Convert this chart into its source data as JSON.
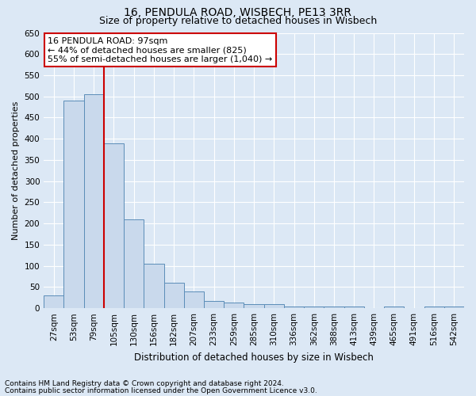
{
  "title1": "16, PENDULA ROAD, WISBECH, PE13 3RR",
  "title2": "Size of property relative to detached houses in Wisbech",
  "xlabel": "Distribution of detached houses by size in Wisbech",
  "ylabel": "Number of detached properties",
  "categories": [
    "27sqm",
    "53sqm",
    "79sqm",
    "105sqm",
    "130sqm",
    "156sqm",
    "182sqm",
    "207sqm",
    "233sqm",
    "259sqm",
    "285sqm",
    "310sqm",
    "336sqm",
    "362sqm",
    "388sqm",
    "413sqm",
    "439sqm",
    "465sqm",
    "491sqm",
    "516sqm",
    "542sqm"
  ],
  "values": [
    30,
    490,
    505,
    390,
    210,
    105,
    60,
    40,
    18,
    14,
    10,
    10,
    5,
    5,
    5,
    4,
    0,
    4,
    0,
    4,
    4
  ],
  "bar_color": "#c9d9ec",
  "bar_edge_color": "#5b8db8",
  "vline_color": "#cc0000",
  "ylim": [
    0,
    650
  ],
  "yticks": [
    0,
    50,
    100,
    150,
    200,
    250,
    300,
    350,
    400,
    450,
    500,
    550,
    600,
    650
  ],
  "annotation_text": "16 PENDULA ROAD: 97sqm\n← 44% of detached houses are smaller (825)\n55% of semi-detached houses are larger (1,040) →",
  "annotation_box_color": "#ffffff",
  "annotation_box_edge": "#cc0000",
  "footnote1": "Contains HM Land Registry data © Crown copyright and database right 2024.",
  "footnote2": "Contains public sector information licensed under the Open Government Licence v3.0.",
  "background_color": "#dce8f5",
  "grid_color": "#ffffff",
  "title1_fontsize": 10,
  "title2_fontsize": 9,
  "xlabel_fontsize": 8.5,
  "ylabel_fontsize": 8,
  "tick_fontsize": 7.5,
  "annot_fontsize": 8,
  "footnote_fontsize": 6.5
}
